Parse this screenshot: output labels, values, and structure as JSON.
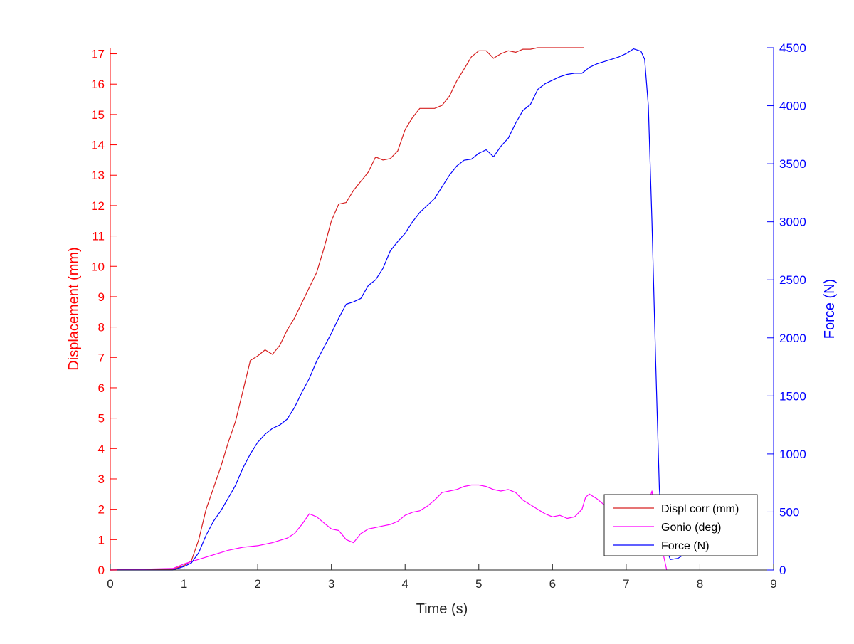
{
  "chart_data": {
    "type": "line",
    "xlabel": "Time (s)",
    "ylabel_left": "Displacement (mm)",
    "ylabel_right": "Force (N)",
    "xlim": [
      0,
      9
    ],
    "ylim_left": [
      0,
      17.2
    ],
    "ylim_right": [
      0,
      4500
    ],
    "xticks": [
      0,
      1,
      2,
      3,
      4,
      5,
      6,
      7,
      8,
      9
    ],
    "yticks_left": [
      0,
      1,
      2,
      3,
      4,
      5,
      6,
      7,
      8,
      9,
      10,
      11,
      12,
      13,
      14,
      15,
      16,
      17
    ],
    "yticks_right": [
      0,
      500,
      1000,
      1500,
      2000,
      2500,
      3000,
      3500,
      4000,
      4500
    ],
    "grid": false,
    "legend_position": "bottom-right",
    "colors": {
      "left_axis": "#ff0000",
      "right_axis": "#0000ff",
      "axis_black": "#262626"
    },
    "series": [
      {
        "name": "Displ corr (mm)",
        "axis": "left",
        "color": "#d62020",
        "x": [
          0,
          0.85,
          1.0,
          1.1,
          1.2,
          1.3,
          1.4,
          1.5,
          1.6,
          1.7,
          1.8,
          1.9,
          2.0,
          2.1,
          2.2,
          2.3,
          2.4,
          2.5,
          2.6,
          2.7,
          2.8,
          2.9,
          3.0,
          3.1,
          3.2,
          3.3,
          3.4,
          3.5,
          3.6,
          3.7,
          3.8,
          3.9,
          4.0,
          4.1,
          4.2,
          4.3,
          4.4,
          4.5,
          4.6,
          4.7,
          4.8,
          4.9,
          5.0,
          5.1,
          5.2,
          5.3,
          5.4,
          5.5,
          5.6,
          5.7,
          5.8,
          5.9,
          6.0,
          6.1,
          6.2,
          6.3,
          6.43
        ],
        "y": [
          0,
          0.02,
          0.15,
          0.3,
          1.0,
          2.0,
          2.7,
          3.4,
          4.2,
          4.9,
          5.9,
          6.9,
          7.05,
          7.25,
          7.1,
          7.4,
          7.9,
          8.3,
          8.8,
          9.3,
          9.8,
          10.6,
          11.5,
          12.05,
          12.1,
          12.5,
          12.8,
          13.1,
          13.6,
          13.5,
          13.55,
          13.8,
          14.5,
          14.9,
          15.2,
          15.2,
          15.2,
          15.3,
          15.6,
          16.1,
          16.5,
          16.9,
          17.1,
          17.1,
          16.85,
          17.0,
          17.1,
          17.05,
          17.15,
          17.15,
          17.2,
          17.2,
          17.2,
          17.2,
          17.2,
          17.2,
          17.2
        ]
      },
      {
        "name": "Gonio (deg)",
        "axis": "left",
        "color": "#ff00ff",
        "x": [
          0,
          0.85,
          1.0,
          1.2,
          1.4,
          1.6,
          1.8,
          2.0,
          2.2,
          2.4,
          2.5,
          2.6,
          2.7,
          2.8,
          2.9,
          3.0,
          3.1,
          3.2,
          3.3,
          3.4,
          3.5,
          3.6,
          3.7,
          3.8,
          3.9,
          4.0,
          4.1,
          4.2,
          4.3,
          4.4,
          4.5,
          4.6,
          4.7,
          4.8,
          4.9,
          5.0,
          5.1,
          5.2,
          5.3,
          5.4,
          5.5,
          5.6,
          5.7,
          5.8,
          5.9,
          6.0,
          6.1,
          6.2,
          6.3,
          6.4,
          6.45,
          6.5,
          6.6,
          6.7,
          6.8,
          6.9,
          7.0,
          7.1,
          7.2,
          7.3,
          7.35,
          7.45,
          7.55
        ],
        "y": [
          0,
          0.05,
          0.2,
          0.35,
          0.5,
          0.65,
          0.75,
          0.8,
          0.9,
          1.05,
          1.2,
          1.5,
          1.85,
          1.75,
          1.55,
          1.35,
          1.3,
          1.0,
          0.9,
          1.2,
          1.35,
          1.4,
          1.45,
          1.5,
          1.6,
          1.8,
          1.9,
          1.95,
          2.1,
          2.3,
          2.55,
          2.6,
          2.65,
          2.75,
          2.8,
          2.8,
          2.75,
          2.65,
          2.6,
          2.65,
          2.55,
          2.3,
          2.15,
          2.0,
          1.85,
          1.75,
          1.8,
          1.7,
          1.75,
          2.0,
          2.4,
          2.5,
          2.35,
          2.15,
          2.0,
          1.9,
          2.0,
          2.1,
          2.15,
          2.2,
          2.6,
          1.1,
          0.0
        ]
      },
      {
        "name": "Force (N)",
        "axis": "right",
        "color": "#0000ff",
        "x": [
          0,
          0.85,
          1.0,
          1.1,
          1.2,
          1.3,
          1.4,
          1.5,
          1.6,
          1.7,
          1.8,
          1.9,
          2.0,
          2.1,
          2.2,
          2.3,
          2.4,
          2.5,
          2.6,
          2.7,
          2.8,
          2.9,
          3.0,
          3.1,
          3.2,
          3.3,
          3.4,
          3.5,
          3.6,
          3.7,
          3.8,
          3.9,
          4.0,
          4.1,
          4.2,
          4.3,
          4.4,
          4.5,
          4.6,
          4.7,
          4.8,
          4.9,
          5.0,
          5.1,
          5.2,
          5.3,
          5.4,
          5.5,
          5.6,
          5.7,
          5.8,
          5.9,
          6.0,
          6.1,
          6.2,
          6.3,
          6.4,
          6.5,
          6.6,
          6.7,
          6.8,
          6.9,
          7.0,
          7.1,
          7.2,
          7.25,
          7.3,
          7.35,
          7.4,
          7.45,
          7.5,
          7.6,
          7.7,
          7.8,
          7.9,
          8.0,
          8.1
        ],
        "y": [
          0,
          0,
          30,
          60,
          150,
          300,
          420,
          510,
          620,
          730,
          880,
          1000,
          1100,
          1170,
          1220,
          1250,
          1300,
          1400,
          1530,
          1650,
          1800,
          1920,
          2040,
          2170,
          2290,
          2310,
          2340,
          2450,
          2500,
          2600,
          2750,
          2830,
          2900,
          3000,
          3080,
          3140,
          3200,
          3300,
          3400,
          3480,
          3530,
          3540,
          3590,
          3620,
          3560,
          3650,
          3720,
          3850,
          3960,
          4010,
          4140,
          4190,
          4220,
          4250,
          4270,
          4280,
          4280,
          4330,
          4360,
          4380,
          4400,
          4420,
          4450,
          4490,
          4470,
          4400,
          4000,
          3000,
          1800,
          700,
          250,
          90,
          100,
          140,
          160,
          190,
          230
        ]
      }
    ]
  }
}
